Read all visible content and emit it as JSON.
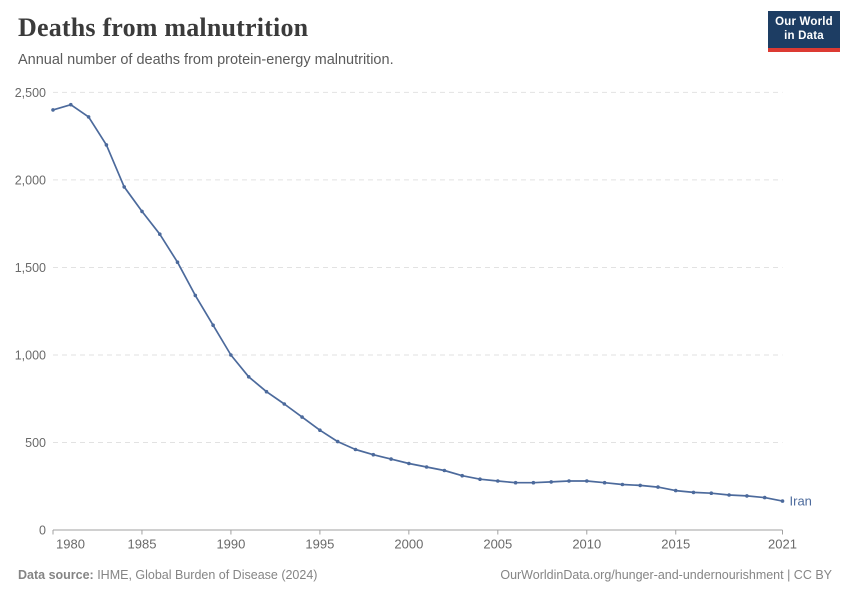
{
  "header": {
    "title": "Deaths from malnutrition",
    "subtitle": "Annual number of deaths from protein-energy malnutrition.",
    "logo": {
      "line1": "Our World",
      "line2": "in Data",
      "bg_color": "#1d3d63",
      "accent_color": "#dc3a32"
    }
  },
  "chart_data": {
    "type": "line",
    "title": "Deaths from malnutrition",
    "subtitle": "Annual number of deaths from protein-energy malnutrition.",
    "entity_label": "Iran",
    "line_color": "#4c6a9c",
    "grid": "horizontal dashed",
    "legend_position": "end-of-line label",
    "xlim": [
      1980,
      2021
    ],
    "ylim": [
      0,
      2500
    ],
    "x_ticks": [
      1980,
      1985,
      1990,
      1995,
      2000,
      2005,
      2010,
      2015,
      2021
    ],
    "y_ticks": [
      0,
      500,
      1000,
      1500,
      2000,
      2500
    ],
    "series": [
      {
        "name": "Iran",
        "color": "#4c6a9c",
        "x": [
          1980,
          1981,
          1982,
          1983,
          1984,
          1985,
          1986,
          1987,
          1988,
          1989,
          1990,
          1991,
          1992,
          1993,
          1994,
          1995,
          1996,
          1997,
          1998,
          1999,
          2000,
          2001,
          2002,
          2003,
          2004,
          2005,
          2006,
          2007,
          2008,
          2009,
          2010,
          2011,
          2012,
          2013,
          2014,
          2015,
          2016,
          2017,
          2018,
          2019,
          2020,
          2021
        ],
        "values": [
          2400,
          2430,
          2360,
          2200,
          1960,
          1820,
          1690,
          1530,
          1340,
          1170,
          1000,
          875,
          790,
          720,
          645,
          570,
          505,
          460,
          430,
          405,
          380,
          360,
          340,
          310,
          290,
          280,
          270,
          270,
          275,
          280,
          280,
          270,
          260,
          255,
          245,
          225,
          215,
          210,
          200,
          195,
          185,
          165
        ]
      }
    ]
  },
  "footer": {
    "source_label": "Data source:",
    "source_text": " IHME, Global Burden of Disease (2024)",
    "link_text": "OurWorldinData.org/hunger-and-undernourishment | CC BY"
  },
  "style": {
    "grid_color": "#e2e2e2",
    "axis_color": "#a1a1a1",
    "tick_text_color": "#6a6a6a"
  }
}
